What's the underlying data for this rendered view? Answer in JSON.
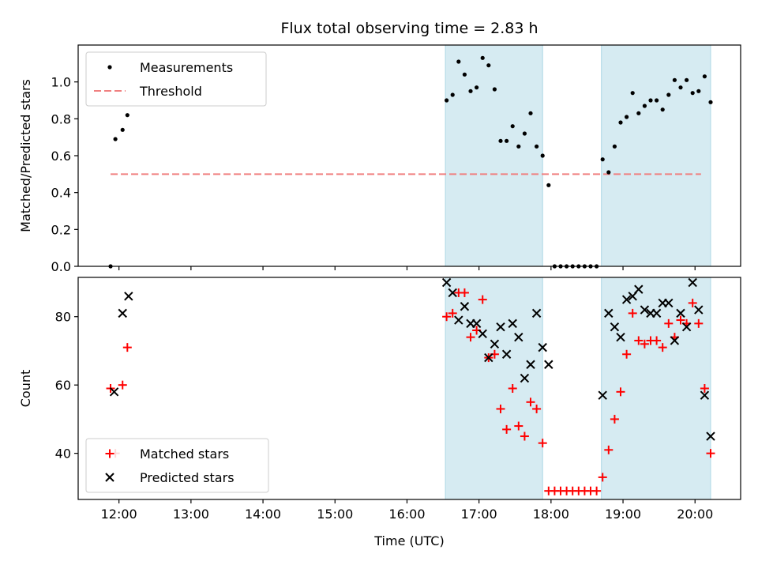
{
  "colors": {
    "shade": "#add8e6",
    "measurement": "#000000",
    "threshold": "#f08080",
    "matched": "#ff0000",
    "predicted": "#000000"
  },
  "chart_data": [
    {
      "type": "scatter",
      "title": "Flux total observing time = 2.83 h",
      "xlabel": "",
      "ylabel": "Matched/Predicted stars",
      "xlim": [
        "11:26",
        "20:38"
      ],
      "ylim": [
        0,
        1.2
      ],
      "xticks": [
        "12:00",
        "13:00",
        "14:00",
        "15:00",
        "16:00",
        "17:00",
        "18:00",
        "19:00",
        "20:00"
      ],
      "yticks": [
        "0.0",
        "0.2",
        "0.4",
        "0.6",
        "0.8",
        "1.0"
      ],
      "legend": {
        "position": "upper-left",
        "entries": [
          "Measurements",
          "Threshold"
        ]
      },
      "shaded_spans": [
        [
          "16:32",
          "17:53"
        ],
        [
          "18:42",
          "20:13"
        ]
      ],
      "threshold": {
        "name": "Threshold",
        "value": 0.5,
        "x": [
          "11:53",
          "20:05"
        ]
      },
      "series": [
        {
          "name": "Measurements",
          "points": [
            [
              "11:53",
              0.0
            ],
            [
              "11:57",
              0.69
            ],
            [
              "12:03",
              0.74
            ],
            [
              "12:07",
              0.82
            ],
            [
              "16:33",
              0.9
            ],
            [
              "16:38",
              0.93
            ],
            [
              "16:43",
              1.11
            ],
            [
              "16:48",
              1.04
            ],
            [
              "16:53",
              0.95
            ],
            [
              "16:58",
              0.97
            ],
            [
              "17:03",
              1.13
            ],
            [
              "17:08",
              1.09
            ],
            [
              "17:13",
              0.96
            ],
            [
              "17:18",
              0.68
            ],
            [
              "17:23",
              0.68
            ],
            [
              "17:28",
              0.76
            ],
            [
              "17:33",
              0.65
            ],
            [
              "17:38",
              0.72
            ],
            [
              "17:43",
              0.83
            ],
            [
              "17:48",
              0.65
            ],
            [
              "17:53",
              0.6
            ],
            [
              "17:58",
              0.44
            ],
            [
              "18:03",
              0.0
            ],
            [
              "18:08",
              0.0
            ],
            [
              "18:13",
              0.0
            ],
            [
              "18:18",
              0.0
            ],
            [
              "18:23",
              0.0
            ],
            [
              "18:28",
              0.0
            ],
            [
              "18:33",
              0.0
            ],
            [
              "18:38",
              0.0
            ],
            [
              "18:43",
              0.58
            ],
            [
              "18:48",
              0.51
            ],
            [
              "18:53",
              0.65
            ],
            [
              "18:58",
              0.78
            ],
            [
              "19:03",
              0.81
            ],
            [
              "19:08",
              0.94
            ],
            [
              "19:13",
              0.83
            ],
            [
              "19:18",
              0.87
            ],
            [
              "19:23",
              0.9
            ],
            [
              "19:28",
              0.9
            ],
            [
              "19:33",
              0.85
            ],
            [
              "19:38",
              0.93
            ],
            [
              "19:43",
              1.01
            ],
            [
              "19:48",
              0.97
            ],
            [
              "19:53",
              1.01
            ],
            [
              "19:58",
              0.94
            ],
            [
              "20:03",
              0.95
            ],
            [
              "20:08",
              1.03
            ],
            [
              "20:13",
              0.89
            ]
          ]
        }
      ]
    },
    {
      "type": "scatter",
      "title": "",
      "xlabel": "Time (UTC)",
      "ylabel": "Count",
      "xlim": [
        "11:26",
        "20:38"
      ],
      "ylim": [
        26.5,
        91.5
      ],
      "xticks": [
        "12:00",
        "13:00",
        "14:00",
        "15:00",
        "16:00",
        "17:00",
        "18:00",
        "19:00",
        "20:00"
      ],
      "yticks": [
        "40",
        "60",
        "80"
      ],
      "legend": {
        "position": "lower-left",
        "entries": [
          "Matched stars",
          "Predicted stars"
        ]
      },
      "shaded_spans": [
        [
          "16:32",
          "17:53"
        ],
        [
          "18:42",
          "20:13"
        ]
      ],
      "series": [
        {
          "name": "Matched stars",
          "points": [
            [
              "11:53",
              59
            ],
            [
              "11:57",
              40
            ],
            [
              "12:03",
              60
            ],
            [
              "12:07",
              71
            ],
            [
              "16:33",
              80
            ],
            [
              "16:38",
              81
            ],
            [
              "16:43",
              87
            ],
            [
              "16:48",
              87
            ],
            [
              "16:53",
              74
            ],
            [
              "16:58",
              76
            ],
            [
              "17:03",
              85
            ],
            [
              "17:08",
              68
            ],
            [
              "17:13",
              69
            ],
            [
              "17:18",
              53
            ],
            [
              "17:23",
              47
            ],
            [
              "17:28",
              59
            ],
            [
              "17:33",
              48
            ],
            [
              "17:38",
              45
            ],
            [
              "17:43",
              55
            ],
            [
              "17:48",
              53
            ],
            [
              "17:53",
              43
            ],
            [
              "17:58",
              29
            ],
            [
              "18:03",
              29
            ],
            [
              "18:08",
              29
            ],
            [
              "18:13",
              29
            ],
            [
              "18:18",
              29
            ],
            [
              "18:23",
              29
            ],
            [
              "18:28",
              29
            ],
            [
              "18:33",
              29
            ],
            [
              "18:38",
              29
            ],
            [
              "18:43",
              33
            ],
            [
              "18:48",
              41
            ],
            [
              "18:53",
              50
            ],
            [
              "18:58",
              58
            ],
            [
              "19:03",
              69
            ],
            [
              "19:08",
              81
            ],
            [
              "19:13",
              73
            ],
            [
              "19:18",
              72
            ],
            [
              "19:23",
              73
            ],
            [
              "19:28",
              73
            ],
            [
              "19:33",
              71
            ],
            [
              "19:38",
              78
            ],
            [
              "19:43",
              74
            ],
            [
              "19:48",
              79
            ],
            [
              "19:53",
              78
            ],
            [
              "19:58",
              84
            ],
            [
              "20:03",
              78
            ],
            [
              "20:08",
              59
            ],
            [
              "20:13",
              40
            ]
          ]
        },
        {
          "name": "Predicted stars",
          "points": [
            [
              "11:56",
              58
            ],
            [
              "12:03",
              81
            ],
            [
              "12:08",
              86
            ],
            [
              "16:33",
              90
            ],
            [
              "16:38",
              87
            ],
            [
              "16:43",
              79
            ],
            [
              "16:48",
              83
            ],
            [
              "16:53",
              78
            ],
            [
              "16:58",
              78
            ],
            [
              "17:03",
              75
            ],
            [
              "17:08",
              68
            ],
            [
              "17:13",
              72
            ],
            [
              "17:18",
              77
            ],
            [
              "17:23",
              69
            ],
            [
              "17:28",
              78
            ],
            [
              "17:33",
              74
            ],
            [
              "17:38",
              62
            ],
            [
              "17:43",
              66
            ],
            [
              "17:48",
              81
            ],
            [
              "17:53",
              71
            ],
            [
              "17:58",
              66
            ],
            [
              "18:43",
              57
            ],
            [
              "18:48",
              81
            ],
            [
              "18:53",
              77
            ],
            [
              "18:58",
              74
            ],
            [
              "19:03",
              85
            ],
            [
              "19:08",
              86
            ],
            [
              "19:13",
              88
            ],
            [
              "19:18",
              82
            ],
            [
              "19:23",
              81
            ],
            [
              "19:28",
              81
            ],
            [
              "19:33",
              84
            ],
            [
              "19:38",
              84
            ],
            [
              "19:43",
              73
            ],
            [
              "19:48",
              81
            ],
            [
              "19:53",
              77
            ],
            [
              "19:58",
              90
            ],
            [
              "20:03",
              82
            ],
            [
              "20:08",
              57
            ],
            [
              "20:13",
              45
            ]
          ]
        }
      ]
    }
  ]
}
